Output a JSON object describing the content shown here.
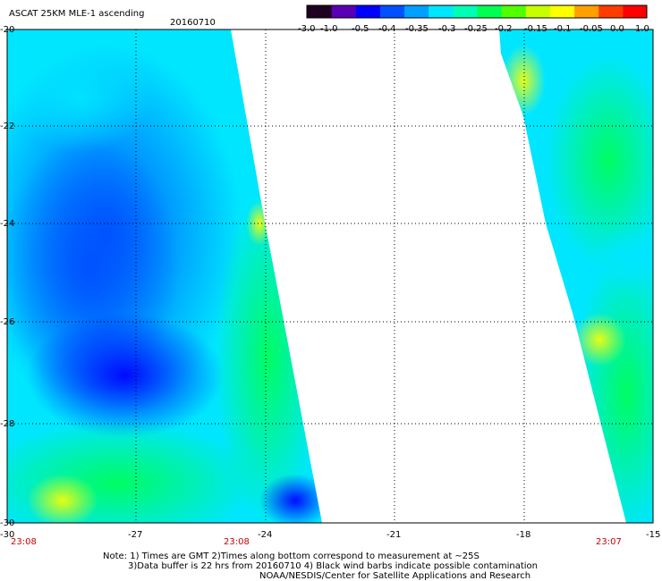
{
  "header": {
    "title": "ASCAT 25KM MLE-1 ascending",
    "date": "20160710"
  },
  "colorbar": {
    "labels": [
      "-3.0",
      "-1.0",
      "-0.5",
      "-0.4",
      "-0.35",
      "-0.3",
      "-0.25",
      "-0.2",
      "-0.15",
      "-0.1",
      "-0.05",
      "0.0",
      "1.0"
    ],
    "colors": [
      "#200020",
      "#5a00b4",
      "#0000ff",
      "#0050ff",
      "#00a0ff",
      "#00e6ff",
      "#00ffb4",
      "#00ff50",
      "#50ff00",
      "#c8ff00",
      "#ffff00",
      "#ffa000",
      "#ff3c00",
      "#ff0000"
    ]
  },
  "axes": {
    "lon_labels": [
      "-30",
      "-27",
      "-24",
      "-21",
      "-18",
      "-15"
    ],
    "lat_labels": [
      "-20",
      "-22",
      "-24",
      "-26",
      "-28",
      "-30"
    ]
  },
  "pass_times": [
    "23:08",
    "23:08",
    "23:07"
  ],
  "notes": [
    "Note: 1) Times are GMT 2)Times along bottom correspond to measurement at ~25S",
    "3)Data buffer is 22 hrs from 20160710 4) Black wind barbs indicate possible contamination",
    "NOAA/NESDIS/Center for Satellite Applications and Research"
  ]
}
